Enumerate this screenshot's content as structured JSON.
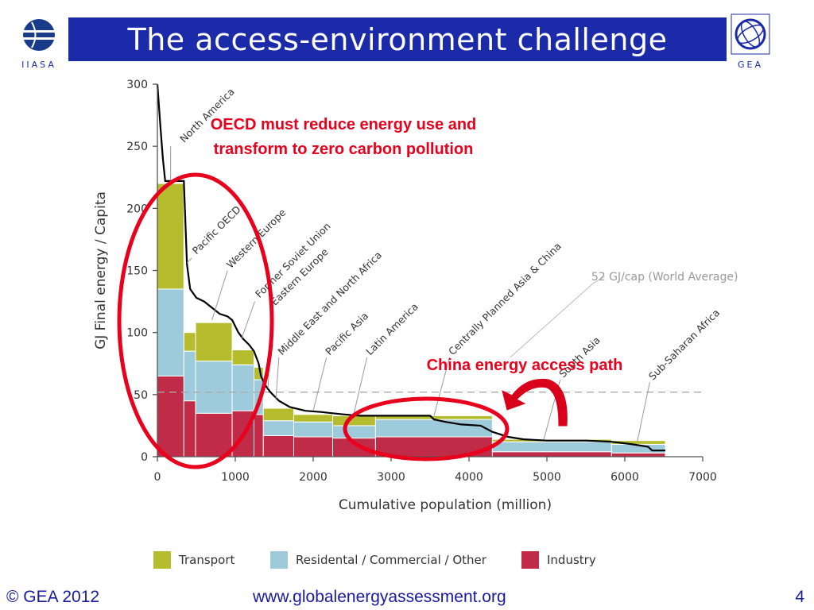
{
  "slide": {
    "title": "The access-environment challenge",
    "logo_left_text": "IIASA",
    "logo_right_text": "GEA",
    "footer_left": "© GEA 2012",
    "footer_center": "www.globalenergyassessment.org",
    "footer_right": "4"
  },
  "chart_data": {
    "type": "bar",
    "xlabel": "Cumulative population (million)",
    "ylabel": "GJ Final energy / Capita",
    "xlim": [
      0,
      7000
    ],
    "ylim": [
      0,
      300
    ],
    "xticks": [
      0,
      1000,
      2000,
      3000,
      4000,
      5000,
      6000,
      7000
    ],
    "yticks": [
      0,
      50,
      100,
      150,
      200,
      250,
      300
    ],
    "legend_position": "bottom",
    "series": [
      {
        "name": "Transport",
        "color": "#b5bd2e"
      },
      {
        "name": "Residental / Commercial / Other",
        "color": "#9ecbdb"
      },
      {
        "name": "Industry",
        "color": "#c02c47"
      }
    ],
    "regions": [
      {
        "name": "North America",
        "x0": 0,
        "x1": 340,
        "values": [
          85,
          70,
          65
        ]
      },
      {
        "name": "Pacific OECD",
        "x0": 340,
        "x1": 490,
        "values": [
          15,
          40,
          45
        ]
      },
      {
        "name": "Western Europe",
        "x0": 490,
        "x1": 960,
        "values": [
          31,
          42,
          35
        ]
      },
      {
        "name": "Former Soviet Union",
        "x0": 960,
        "x1": 1240,
        "values": [
          12,
          37,
          37
        ]
      },
      {
        "name": "Eastern Europe",
        "x0": 1240,
        "x1": 1360,
        "values": [
          10,
          28,
          34
        ]
      },
      {
        "name": "Middle East and North Africa",
        "x0": 1360,
        "x1": 1750,
        "values": [
          10,
          12,
          17
        ]
      },
      {
        "name": "Pacific Asia",
        "x0": 1750,
        "x1": 2250,
        "values": [
          6,
          12,
          16
        ]
      },
      {
        "name": "Latin America",
        "x0": 2250,
        "x1": 2800,
        "values": [
          8,
          10,
          15
        ]
      },
      {
        "name": "Centrally Planned Asia & China",
        "x0": 2800,
        "x1": 4300,
        "values": [
          3,
          14,
          16
        ]
      },
      {
        "name": "South Asia",
        "x0": 4300,
        "x1": 5830,
        "values": [
          2,
          8,
          4
        ]
      },
      {
        "name": "Sub-Saharan Africa",
        "x0": 5830,
        "x1": 6520,
        "values": [
          3,
          7,
          3
        ]
      }
    ],
    "cumulative_curve": [
      [
        0,
        300
      ],
      [
        40,
        265
      ],
      [
        70,
        240
      ],
      [
        100,
        222
      ],
      [
        200,
        222
      ],
      [
        340,
        222
      ],
      [
        380,
        155
      ],
      [
        420,
        135
      ],
      [
        500,
        128
      ],
      [
        600,
        125
      ],
      [
        700,
        120
      ],
      [
        800,
        115
      ],
      [
        900,
        113
      ],
      [
        960,
        110
      ],
      [
        1040,
        100
      ],
      [
        1100,
        95
      ],
      [
        1180,
        90
      ],
      [
        1240,
        85
      ],
      [
        1300,
        75
      ],
      [
        1330,
        65
      ],
      [
        1380,
        58
      ],
      [
        1450,
        52
      ],
      [
        1560,
        45
      ],
      [
        1700,
        40
      ],
      [
        1900,
        37
      ],
      [
        2100,
        36
      ],
      [
        2250,
        35
      ],
      [
        2400,
        34
      ],
      [
        2600,
        33
      ],
      [
        2800,
        33
      ],
      [
        3200,
        33
      ],
      [
        3500,
        33
      ],
      [
        3550,
        30
      ],
      [
        3700,
        28
      ],
      [
        3900,
        26
      ],
      [
        4150,
        25
      ],
      [
        4300,
        20
      ],
      [
        4500,
        16
      ],
      [
        4700,
        14
      ],
      [
        5000,
        13
      ],
      [
        5500,
        13
      ],
      [
        5830,
        12
      ],
      [
        6100,
        10
      ],
      [
        6300,
        8
      ],
      [
        6350,
        5
      ],
      [
        6520,
        5
      ]
    ],
    "reference_line": {
      "label": "52 GJ/cap (World Average)",
      "y": 52
    },
    "annotations": [
      {
        "text_lines": [
          "OECD must reduce energy use and",
          "transform to zero carbon pollution"
        ],
        "color": "#e8001c"
      },
      {
        "text": "China energy access path",
        "color": "#e8001c"
      }
    ]
  }
}
